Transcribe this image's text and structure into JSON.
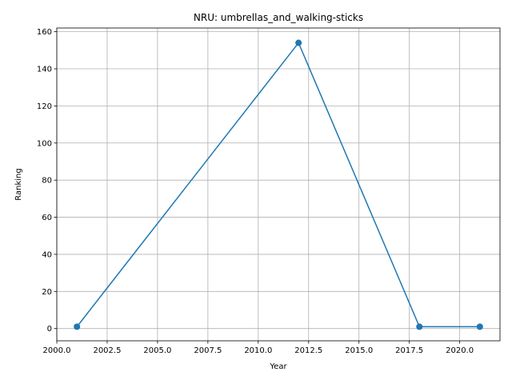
{
  "chart_data": {
    "type": "line",
    "title": "NRU: umbrellas_and_walking-sticks",
    "xlabel": "Year",
    "ylabel": "Ranking",
    "x": [
      2001,
      2012,
      2018,
      2021
    ],
    "series": [
      {
        "values": [
          1,
          154,
          1,
          1
        ]
      }
    ],
    "xlim": [
      2000.0,
      2022.0
    ],
    "ylim": [
      -6.6,
      162.0
    ],
    "xticks": [
      2000.0,
      2002.5,
      2005.0,
      2007.5,
      2010.0,
      2012.5,
      2015.0,
      2017.5,
      2020.0
    ],
    "xtick_labels": [
      "2000.0",
      "2002.5",
      "2005.0",
      "2007.5",
      "2010.0",
      "2012.5",
      "2015.0",
      "2017.5",
      "2020.0"
    ],
    "yticks": [
      0,
      20,
      40,
      60,
      80,
      100,
      120,
      140,
      160
    ],
    "ytick_labels": [
      "0",
      "20",
      "40",
      "60",
      "80",
      "100",
      "120",
      "140",
      "160"
    ],
    "grid": true,
    "markers": true,
    "colors": {
      "line": "#1f77b4",
      "grid": "#b0b0b0",
      "axis": "#000000"
    }
  }
}
